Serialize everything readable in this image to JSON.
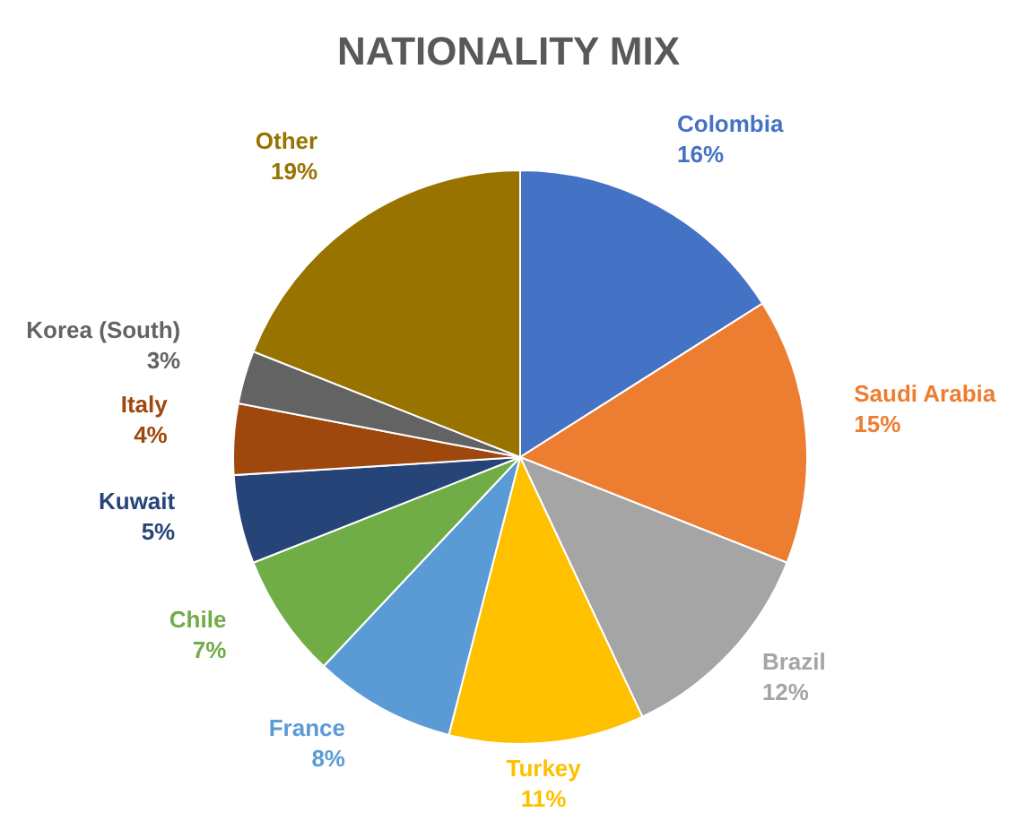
{
  "chart_data": {
    "type": "pie",
    "title": "NATIONALITY MIX",
    "categories": [
      "Colombia",
      "Saudi Arabia",
      "Brazil",
      "Turkey",
      "France",
      "Chile",
      "Kuwait",
      "Italy",
      "Korea (South)",
      "Other"
    ],
    "values": [
      16,
      15,
      12,
      11,
      8,
      7,
      5,
      4,
      3,
      19
    ],
    "value_labels": [
      "16%",
      "15%",
      "12%",
      "11%",
      "8%",
      "7%",
      "5%",
      "4%",
      "3%",
      "19%"
    ],
    "colors": [
      "#4472c4",
      "#ed7d31",
      "#a5a5a5",
      "#ffc000",
      "#5b9bd5",
      "#70ad47",
      "#264478",
      "#9e480e",
      "#636363",
      "#997300"
    ],
    "legend": false
  }
}
